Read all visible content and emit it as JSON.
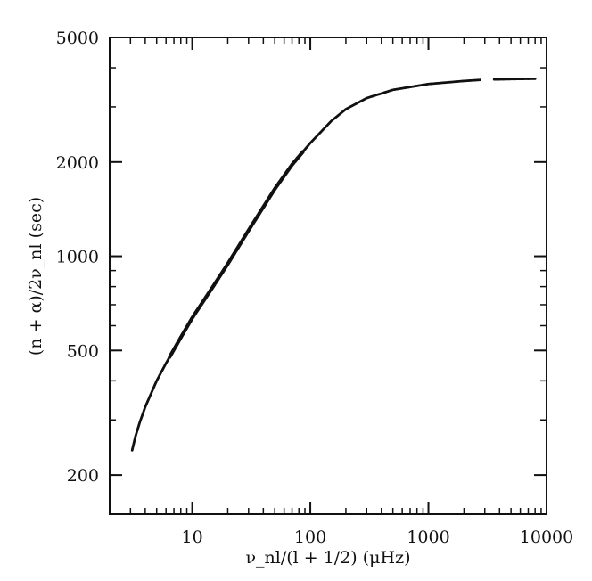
{
  "chart_data": {
    "type": "scatter",
    "title": "",
    "xlabel": "ν_nl/(l + 1/2) (μHz)",
    "ylabel": "(n + α)/2ν_nl (sec)",
    "xscale": "log",
    "yscale": "log",
    "xlim": [
      2,
      10000
    ],
    "ylim": [
      150,
      5000
    ],
    "grid": false,
    "legend": "none",
    "x_ticks": [
      {
        "value": 10,
        "label": "10"
      },
      {
        "value": 100,
        "label": "100"
      },
      {
        "value": 1000,
        "label": "1000"
      },
      {
        "value": 10000,
        "label": "10000"
      }
    ],
    "y_ticks": [
      {
        "value": 200,
        "label": "200"
      },
      {
        "value": 500,
        "label": "500"
      },
      {
        "value": 1000,
        "label": "1000"
      },
      {
        "value": 2000,
        "label": "2000"
      },
      {
        "value": 5000,
        "label": "5000"
      }
    ],
    "series": [
      {
        "color": "#111111",
        "points": [
          {
            "x": 3.1,
            "y": 240
          },
          {
            "x": 3.3,
            "y": 265
          },
          {
            "x": 3.6,
            "y": 295
          },
          {
            "x": 4.0,
            "y": 330
          },
          {
            "x": 5.0,
            "y": 400
          },
          {
            "x": 6.0,
            "y": 455
          },
          {
            "x": 8.0,
            "y": 550
          },
          {
            "x": 10,
            "y": 635
          },
          {
            "x": 15,
            "y": 800
          },
          {
            "x": 20,
            "y": 945
          },
          {
            "x": 30,
            "y": 1210
          },
          {
            "x": 50,
            "y": 1640
          },
          {
            "x": 70,
            "y": 1960
          },
          {
            "x": 100,
            "y": 2300
          },
          {
            "x": 150,
            "y": 2700
          },
          {
            "x": 200,
            "y": 2950
          },
          {
            "x": 300,
            "y": 3200
          },
          {
            "x": 500,
            "y": 3400
          },
          {
            "x": 1000,
            "y": 3550
          },
          {
            "x": 2000,
            "y": 3630
          },
          {
            "x": 2800,
            "y": 3660
          },
          {
            "x": 3600,
            "y": 3670
          },
          {
            "x": 5000,
            "y": 3680
          },
          {
            "x": 8000,
            "y": 3690
          }
        ]
      }
    ]
  }
}
